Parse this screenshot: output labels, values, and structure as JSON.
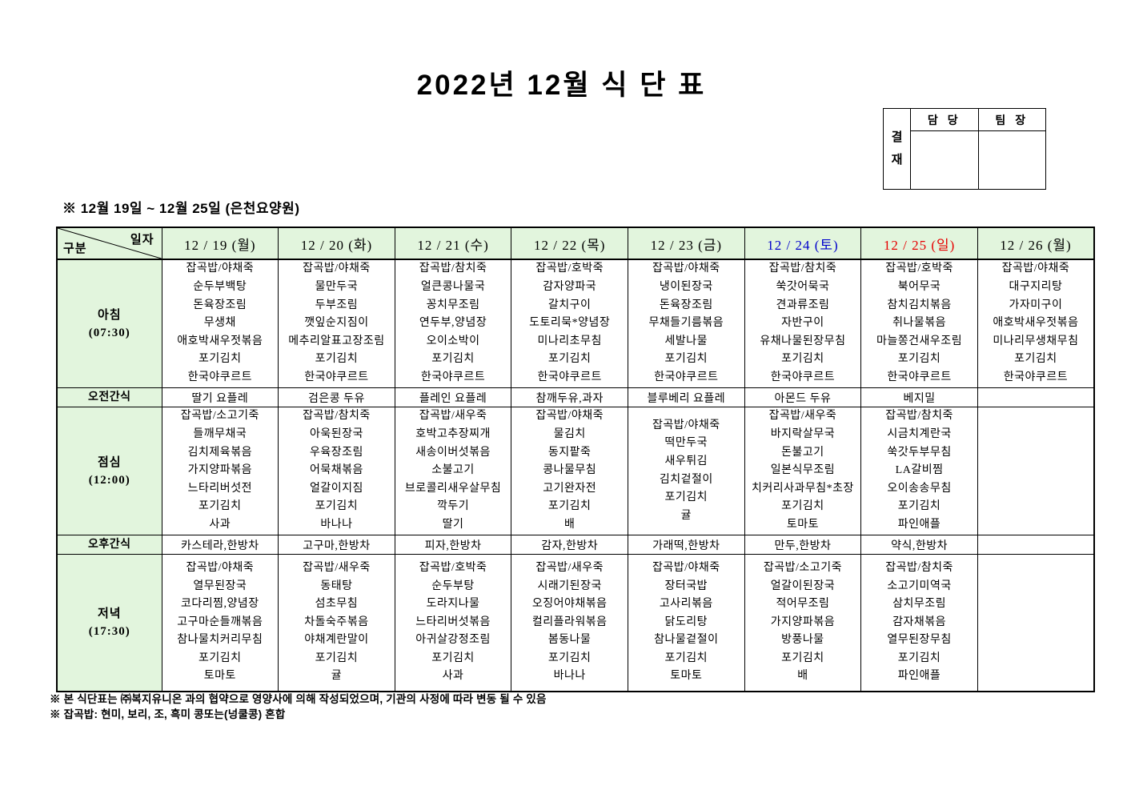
{
  "title": "2022년  12월  식 단 표",
  "approval": {
    "label": "결재",
    "columns": [
      "담 당",
      "팀 장"
    ]
  },
  "subtitle": "※  12월  19일  ~  12월  25일  (은천요양원)",
  "colors": {
    "header_green": "#e2f5dd",
    "saturday_blue": "#0000cc",
    "sunday_red": "#e60000",
    "weekday_black": "#000000"
  },
  "table": {
    "corner": {
      "top": "일자",
      "bottom": "구분"
    },
    "columns": [
      {
        "label": "12 / 19 (월)",
        "color": "#000000"
      },
      {
        "label": "12 / 20 (화)",
        "color": "#000000"
      },
      {
        "label": "12 / 21 (수)",
        "color": "#000000"
      },
      {
        "label": "12 / 22 (목)",
        "color": "#000000"
      },
      {
        "label": "12 / 23 (금)",
        "color": "#000000"
      },
      {
        "label": "12 / 24 (토)",
        "color": "#0000cc"
      },
      {
        "label": "12 / 25 (일)",
        "color": "#e60000"
      },
      {
        "label": "12 / 26 (월)",
        "color": "#000000"
      }
    ],
    "rows": [
      {
        "key": "breakfast",
        "type": "meal",
        "label": "아침",
        "time": "(07:30)",
        "cells": [
          [
            "잡곡밥/야채죽",
            "순두부백탕",
            "돈육장조림",
            "무생채",
            "애호박새우젓볶음",
            "포기김치",
            "한국야쿠르트"
          ],
          [
            "잡곡밥/야채죽",
            "물만두국",
            "두부조림",
            "깻잎순지짐이",
            "메추리알표고장조림",
            "포기김치",
            "한국야쿠르트"
          ],
          [
            "잡곡밥/참치죽",
            "얼큰콩나물국",
            "꽁치무조림",
            "연두부,양념장",
            "오이소박이",
            "포기김치",
            "한국야쿠르트"
          ],
          [
            "잡곡밥/호박죽",
            "감자양파국",
            "갈치구이",
            "도토리묵*양념장",
            "미나리초무침",
            "포기김치",
            "한국야쿠르트"
          ],
          [
            "잡곡밥/야채죽",
            "냉이된장국",
            "돈육장조림",
            "무채들기름볶음",
            "세발나물",
            "포기김치",
            "한국야쿠르트"
          ],
          [
            "잡곡밥/참치죽",
            "쑥갓어묵국",
            "견과류조림",
            "자반구이",
            "유채나물된장무침",
            "포기김치",
            "한국야쿠르트"
          ],
          [
            "잡곡밥/호박죽",
            "북어무국",
            "참치김치볶음",
            "취나물볶음",
            "마늘쫑건새우조림",
            "포기김치",
            "한국야쿠르트"
          ],
          [
            "잡곡밥/야채죽",
            "대구지리탕",
            "가자미구이",
            "애호박새우젓볶음",
            "미나리무생채무침",
            "포기김치",
            "한국야쿠르트"
          ]
        ]
      },
      {
        "key": "morning-snack",
        "type": "snack",
        "label": "오전간식",
        "cells": [
          "딸기 요플레",
          "검은콩 두유",
          "플레인 요플레",
          "참깨두유,과자",
          "블루베리 요플레",
          "아몬드 두유",
          "베지밀",
          ""
        ]
      },
      {
        "key": "lunch",
        "type": "meal",
        "label": "점심",
        "time": "(12:00)",
        "cells": [
          [
            "잡곡밥/소고기죽",
            "들깨무채국",
            "김치제육볶음",
            "가지양파볶음",
            "느타리버섯전",
            "포기김치",
            "사과"
          ],
          [
            "잡곡밥/참치죽",
            "아욱된장국",
            "우육장조림",
            "어묵채볶음",
            "얼갈이지짐",
            "포기김치",
            "바나나"
          ],
          [
            "잡곡밥/새우죽",
            "호박고추장찌개",
            "새송이버섯볶음",
            "소불고기",
            "브로콜리새우살무침",
            "깍두기",
            "딸기"
          ],
          [
            "잡곡밥/야채죽",
            "물김치",
            "동지팥죽",
            "콩나물무침",
            "고기완자전",
            "포기김치",
            "배"
          ],
          [
            "잡곡밥/야채죽",
            "떡만두국",
            "새우튀김",
            "김치겉절이",
            "포기김치",
            "귤"
          ],
          [
            "잡곡밥/새우죽",
            "바지락살무국",
            "돈불고기",
            "일본식무조림",
            "치커리사과무침*초장",
            "포기김치",
            "토마토"
          ],
          [
            "잡곡밥/참치죽",
            "시금치계란국",
            "쑥갓두부무침",
            "LA갈비찜",
            "오이송송무침",
            "포기김치",
            "파인애플"
          ],
          []
        ]
      },
      {
        "key": "afternoon-snack",
        "type": "snack",
        "label": "오후간식",
        "cells": [
          "카스테라,한방차",
          "고구마,한방차",
          "피자,한방차",
          "감자,한방차",
          "가래떡,한방차",
          "만두,한방차",
          "약식,한방차",
          ""
        ]
      },
      {
        "key": "dinner",
        "type": "meal",
        "label": "저녁",
        "time": "(17:30)",
        "cells": [
          [
            "잡곡밥/야채죽",
            "열무된장국",
            "코다리찜,양념장",
            "고구마순들깨볶음",
            "참나물치커리무침",
            "포기김치",
            "토마토"
          ],
          [
            "잡곡밥/새우죽",
            "동태탕",
            "섬초무침",
            "차돌숙주볶음",
            "야채계란말이",
            "포기김치",
            "귤"
          ],
          [
            "잡곡밥/호박죽",
            "순두부탕",
            "도라지나물",
            "느타리버섯볶음",
            "아귀살강정조림",
            "포기김치",
            "사과"
          ],
          [
            "잡곡밥/새우죽",
            "시래기된장국",
            "오징어야채볶음",
            "컬리플라워볶음",
            "봄동나물",
            "포기김치",
            "바나나"
          ],
          [
            "잡곡밥/야채죽",
            "장터국밥",
            "고사리볶음",
            "닭도리탕",
            "참나물겉절이",
            "포기김치",
            "토마토"
          ],
          [
            "잡곡밥/소고기죽",
            "얼갈이된장국",
            "적어무조림",
            "가지양파볶음",
            "방풍나물",
            "포기김치",
            "배"
          ],
          [
            "잡곡밥/참치죽",
            "소고기미역국",
            "삼치무조림",
            "감자채볶음",
            "열무된장무침",
            "포기김치",
            "파인애플"
          ],
          []
        ]
      }
    ]
  },
  "footnotes": [
    "※ 본 식단표는 ㈜복지유니온 과의 협약으로 영양사에 의해 작성되었으며, 기관의 사정에 따라 변동 될 수 있음",
    "※ 잡곡밥: 현미, 보리, 조, 흑미 콩또는(넝쿨콩) 혼합"
  ]
}
